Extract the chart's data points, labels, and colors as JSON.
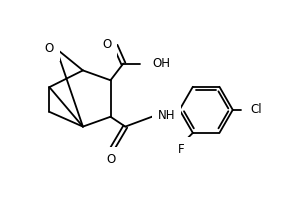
{
  "bg_color": "#ffffff",
  "line_color": "#000000",
  "line_width": 1.3,
  "font_size": 8.5,
  "O_label": "O",
  "OH_label": "OH",
  "NH_label": "NH",
  "F_label": "F",
  "Cl_label": "Cl",
  "O_carb_label": "O",
  "O_amide_label": "O"
}
